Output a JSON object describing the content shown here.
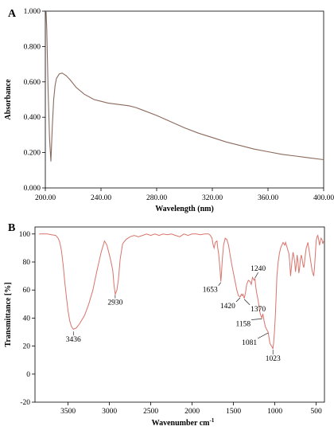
{
  "chart_data": [
    {
      "panel": "A",
      "type": "line",
      "xlabel": "Wavelength (nm)",
      "ylabel": "Absorbance",
      "xlim": [
        200,
        400
      ],
      "ylim": [
        0,
        1.0
      ],
      "xticks": [
        "200.00",
        "240.00",
        "280.00",
        "320.00",
        "360.00",
        "400.00"
      ],
      "yticks": [
        "0.000",
        "0.200",
        "0.400",
        "0.600",
        "0.800",
        "1.000"
      ],
      "grid": false,
      "line_color": "#8b6a5c",
      "series": [
        {
          "x": [
            200.5,
            201,
            202,
            203,
            204,
            205,
            206,
            207,
            208,
            210,
            212,
            215,
            218,
            222,
            228,
            235,
            240,
            245,
            250,
            255,
            260,
            265,
            270,
            280,
            290,
            300,
            310,
            320,
            330,
            340,
            350,
            360,
            370,
            380,
            390,
            400
          ],
          "y": [
            1.0,
            0.9,
            0.55,
            0.28,
            0.15,
            0.35,
            0.5,
            0.58,
            0.62,
            0.645,
            0.65,
            0.635,
            0.61,
            0.57,
            0.53,
            0.5,
            0.49,
            0.48,
            0.475,
            0.47,
            0.465,
            0.455,
            0.44,
            0.41,
            0.375,
            0.34,
            0.31,
            0.285,
            0.26,
            0.24,
            0.22,
            0.205,
            0.19,
            0.18,
            0.17,
            0.16
          ]
        }
      ]
    },
    {
      "panel": "B",
      "type": "line",
      "xlabel": "Wavenumber cm",
      "xlabel_sup": "-1",
      "ylabel": "Transmittance [%]",
      "xlim": [
        3900,
        400
      ],
      "ylim": [
        -20,
        105
      ],
      "xticks": [
        3500,
        3000,
        2500,
        2000,
        1500,
        1000,
        500
      ],
      "yticks": [
        -20,
        0,
        20,
        40,
        60,
        80,
        100
      ],
      "grid": false,
      "line_color": "#d9746b",
      "annotations": [
        {
          "label": "3436",
          "x": 3436,
          "y": 31
        },
        {
          "label": "2930",
          "x": 2930,
          "y": 57
        },
        {
          "label": "1653",
          "x": 1653,
          "y": 66
        },
        {
          "label": "1420",
          "x": 1420,
          "y": 55
        },
        {
          "label": "1370",
          "x": 1370,
          "y": 54
        },
        {
          "label": "1240",
          "x": 1240,
          "y": 68
        },
        {
          "label": "1158",
          "x": 1158,
          "y": 40
        },
        {
          "label": "1081",
          "x": 1081,
          "y": 30
        },
        {
          "label": "1023",
          "x": 1023,
          "y": 18
        }
      ],
      "series": [
        {
          "x": [
            3850,
            3800,
            3750,
            3700,
            3650,
            3620,
            3600,
            3580,
            3560,
            3540,
            3520,
            3500,
            3480,
            3460,
            3436,
            3400,
            3360,
            3300,
            3250,
            3200,
            3150,
            3100,
            3060,
            3030,
            3000,
            2980,
            2960,
            2945,
            2930,
            2910,
            2890,
            2870,
            2840,
            2800,
            2750,
            2700,
            2650,
            2600,
            2550,
            2500,
            2450,
            2400,
            2350,
            2300,
            2250,
            2200,
            2150,
            2100,
            2050,
            2000,
            1950,
            1900,
            1850,
            1800,
            1780,
            1760,
            1745,
            1735,
            1720,
            1700,
            1690,
            1680,
            1670,
            1660,
            1653,
            1645,
            1635,
            1620,
            1600,
            1580,
            1560,
            1540,
            1520,
            1500,
            1480,
            1460,
            1440,
            1420,
            1405,
            1395,
            1385,
            1370,
            1355,
            1340,
            1320,
            1300,
            1285,
            1270,
            1260,
            1250,
            1240,
            1230,
            1220,
            1210,
            1200,
            1190,
            1180,
            1170,
            1158,
            1145,
            1130,
            1115,
            1100,
            1090,
            1081,
            1070,
            1060,
            1050,
            1040,
            1030,
            1023,
            1015,
            1005,
            995,
            985,
            975,
            960,
            945,
            930,
            915,
            900,
            890,
            880,
            870,
            860,
            850,
            840,
            830,
            820,
            810,
            800,
            790,
            780,
            770,
            760,
            750,
            740,
            730,
            720,
            710,
            700,
            690,
            680,
            670,
            660,
            650,
            640,
            630,
            620,
            610,
            600,
            590,
            580,
            570,
            560,
            550,
            540,
            530,
            520,
            510,
            500,
            490,
            480,
            470,
            460,
            450,
            440,
            430,
            420,
            410
          ],
          "y": [
            100,
            100,
            100,
            99.5,
            99,
            97,
            94,
            88,
            78,
            66,
            55,
            45,
            38,
            34,
            32,
            33,
            36,
            42,
            50,
            60,
            74,
            87,
            95,
            92,
            85,
            80,
            74,
            64,
            57,
            60,
            68,
            82,
            93,
            96,
            98,
            99,
            98,
            99,
            100,
            99,
            100,
            99,
            100,
            99.5,
            100,
            99,
            98,
            100,
            99,
            100,
            100,
            99.5,
            100,
            100,
            99,
            97,
            92,
            90,
            94,
            95,
            90,
            86,
            80,
            72,
            66,
            72,
            82,
            92,
            97,
            96,
            92,
            85,
            78,
            72,
            66,
            60,
            56,
            55,
            57,
            56,
            57,
            54,
            58,
            64,
            67,
            66,
            64,
            69,
            68,
            67,
            68,
            62,
            58,
            55,
            52,
            48,
            44,
            42,
            40,
            43,
            38,
            34,
            32,
            31,
            30,
            26,
            22,
            21,
            20,
            19,
            18,
            22,
            30,
            40,
            55,
            70,
            80,
            86,
            90,
            92,
            94,
            93,
            92,
            94,
            92,
            90,
            88,
            86,
            80,
            70,
            76,
            82,
            87,
            84,
            80,
            73,
            78,
            85,
            80,
            72,
            76,
            82,
            85,
            82,
            78,
            76,
            80,
            86,
            90,
            92,
            94,
            90,
            86,
            82,
            78,
            74,
            72,
            70,
            76,
            86,
            95,
            98,
            99,
            96,
            92,
            95,
            97,
            96,
            93,
            95
          ]
        }
      ]
    }
  ]
}
